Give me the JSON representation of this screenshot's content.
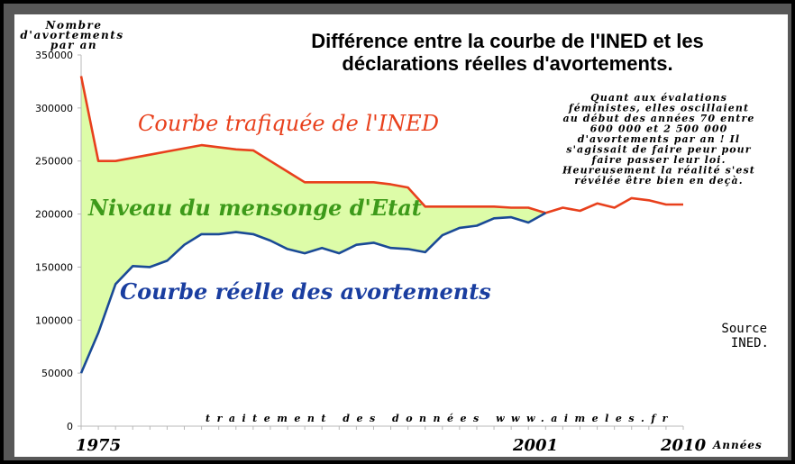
{
  "chart_data": {
    "type": "area",
    "title": "Différence entre la courbe de l'INED et les déclarations réelles d'avortements.",
    "ylabel": "Nombre d'avortements par an",
    "xlabel": "Années",
    "x_tick_labels": [
      "1975",
      "2001",
      "2010"
    ],
    "x_range": [
      1975,
      2010
    ],
    "ylim": [
      0,
      350000
    ],
    "y_ticks": [
      "0",
      "50000",
      "100000",
      "150000",
      "200000",
      "250000",
      "300000",
      "350000"
    ],
    "grid": false,
    "colors": {
      "ined": "#e8401c",
      "reel": "#1a4a96",
      "difference": "#ddfca8"
    },
    "series": [
      {
        "name": "Courbe trafiquée de l'INED",
        "x": [
          1975,
          1976,
          1977,
          1978,
          1979,
          1980,
          1981,
          1982,
          1983,
          1984,
          1985,
          1986,
          1987,
          1988,
          1989,
          1990,
          1991,
          1992,
          1993,
          1994,
          1995,
          1996,
          1997,
          1998,
          1999,
          2000,
          2001,
          2002,
          2003,
          2004,
          2005,
          2006,
          2007,
          2008,
          2009,
          2010
        ],
        "values": [
          330000,
          250000,
          250000,
          253000,
          256000,
          259000,
          262000,
          265000,
          263000,
          261000,
          260000,
          250000,
          240000,
          230000,
          230000,
          230000,
          230000,
          230000,
          228000,
          225000,
          207000,
          207000,
          207000,
          207000,
          207000,
          206000,
          206000,
          201000,
          206000,
          203000,
          210000,
          206000,
          215000,
          213000,
          209000,
          209000
        ]
      },
      {
        "name": "Courbe réelle des avortements",
        "x": [
          1975,
          1976,
          1977,
          1978,
          1979,
          1980,
          1981,
          1982,
          1983,
          1984,
          1985,
          1986,
          1987,
          1988,
          1989,
          1990,
          1991,
          1992,
          1993,
          1994,
          1995,
          1996,
          1997,
          1998,
          1999,
          2000,
          2001,
          2002
        ],
        "values": [
          50000,
          88000,
          134000,
          151000,
          150000,
          156000,
          171000,
          181000,
          181000,
          183000,
          181000,
          175000,
          167000,
          163000,
          168000,
          163000,
          171000,
          173000,
          168000,
          167000,
          164000,
          180000,
          187000,
          189000,
          196000,
          197000,
          192000,
          201000
        ]
      }
    ],
    "annotations": {
      "curve_ined_label": "Courbe trafiquée de l'INED",
      "mensonge_label": "Niveau du mensonge d'Etat",
      "curve_reel_label": "Courbe réelle des avortements",
      "note_lines": [
        "Quant aux évalations",
        "féministes, elles oscillaient",
        "au début des années 70 entre",
        "600 000 et 2 500 000",
        "d'avortements par an ! Il",
        "s'agissait de faire peur pour",
        "faire passer leur loi.",
        "Heureusement la réalité s'est",
        "révélée être bien en deçà."
      ],
      "source_lines": [
        "Source",
        "INED."
      ],
      "credit": "traitement  des  données  www.aimeles.fr"
    }
  }
}
